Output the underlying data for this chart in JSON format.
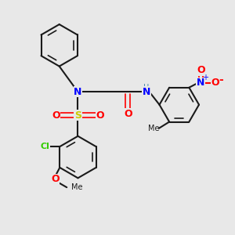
{
  "bg_color": "#e8e8e8",
  "bond_color": "#1a1a1a",
  "N_color": "#0000ff",
  "O_color": "#ff0000",
  "S_color": "#cccc00",
  "Cl_color": "#33cc00",
  "H_color": "#4488aa",
  "figsize": [
    3.0,
    3.0
  ],
  "dpi": 100,
  "xlim": [
    0,
    10
  ],
  "ylim": [
    0,
    10
  ]
}
